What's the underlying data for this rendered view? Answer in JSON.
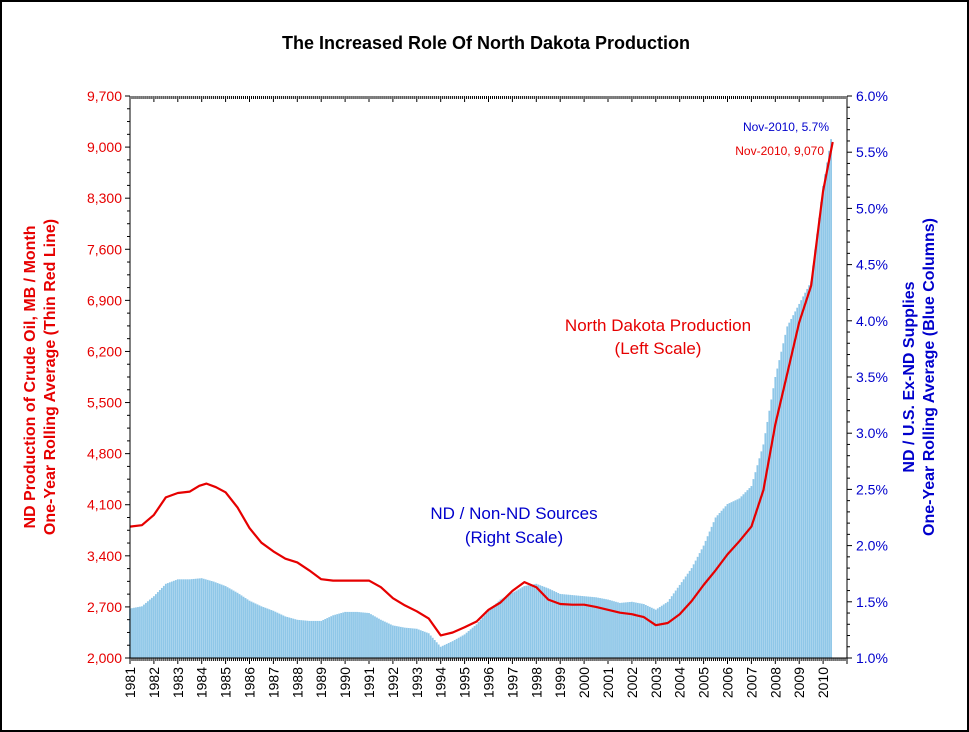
{
  "chart_data": {
    "type": "bar+line",
    "title": "The Increased Role Of North Dakota Production",
    "left_axis": {
      "label_line1": "ND Production of Crude Oil, MB / Month",
      "label_line2": "One-Year Rolling Average (Thin Red Line)",
      "ylim": [
        2000,
        9700
      ],
      "ticks": [
        2000,
        2700,
        3400,
        4100,
        4800,
        5500,
        6200,
        6900,
        7600,
        8300,
        9000,
        9700
      ],
      "tick_labels": [
        "2,000",
        "2,700",
        "3,400",
        "4,100",
        "4,800",
        "5,500",
        "6,200",
        "6,900",
        "7,600",
        "8,300",
        "9,000",
        "9,700"
      ],
      "color": "#e60000"
    },
    "right_axis": {
      "label_line1": "ND / U.S. Ex-ND Supplies",
      "label_line2": "One-Year Rolling Average (Blue Columns)",
      "ylim": [
        1.0,
        6.0
      ],
      "ticks": [
        1.0,
        1.5,
        2.0,
        2.5,
        3.0,
        3.5,
        4.0,
        4.5,
        5.0,
        5.5,
        6.0
      ],
      "tick_labels": [
        "1.0%",
        "1.5%",
        "2.0%",
        "2.5%",
        "3.0%",
        "3.5%",
        "4.0%",
        "4.5%",
        "5.0%",
        "5.5%",
        "6.0%"
      ],
      "color": "#0000cc"
    },
    "x_axis": {
      "range": [
        1981,
        2011
      ],
      "tick_labels": [
        "1981",
        "1982",
        "1983",
        "1984",
        "1985",
        "1986",
        "1987",
        "1988",
        "1989",
        "1990",
        "1991",
        "1992",
        "1993",
        "1994",
        "1995",
        "1996",
        "1997",
        "1998",
        "1999",
        "2000",
        "2001",
        "2002",
        "2003",
        "2004",
        "2005",
        "2006",
        "2007",
        "2008",
        "2009",
        "2010"
      ]
    },
    "series": [
      {
        "name": "North Dakota Production",
        "type": "line",
        "axis": "left",
        "color": "#e60000",
        "points": [
          [
            1981.0,
            3800
          ],
          [
            1981.5,
            3820
          ],
          [
            1982.0,
            3960
          ],
          [
            1982.5,
            4200
          ],
          [
            1983.0,
            4260
          ],
          [
            1983.5,
            4280
          ],
          [
            1983.9,
            4360
          ],
          [
            1984.2,
            4390
          ],
          [
            1984.6,
            4340
          ],
          [
            1985.0,
            4270
          ],
          [
            1985.5,
            4060
          ],
          [
            1986.0,
            3780
          ],
          [
            1986.5,
            3580
          ],
          [
            1987.0,
            3460
          ],
          [
            1987.5,
            3360
          ],
          [
            1988.0,
            3310
          ],
          [
            1988.5,
            3200
          ],
          [
            1989.0,
            3080
          ],
          [
            1989.5,
            3060
          ],
          [
            1990.0,
            3060
          ],
          [
            1990.5,
            3060
          ],
          [
            1991.0,
            3060
          ],
          [
            1991.5,
            2970
          ],
          [
            1992.0,
            2820
          ],
          [
            1992.5,
            2720
          ],
          [
            1993.0,
            2640
          ],
          [
            1993.5,
            2540
          ],
          [
            1994.0,
            2310
          ],
          [
            1994.5,
            2350
          ],
          [
            1995.0,
            2420
          ],
          [
            1995.5,
            2500
          ],
          [
            1996.0,
            2660
          ],
          [
            1996.5,
            2760
          ],
          [
            1997.0,
            2920
          ],
          [
            1997.5,
            3040
          ],
          [
            1998.0,
            2970
          ],
          [
            1998.5,
            2800
          ],
          [
            1999.0,
            2740
          ],
          [
            1999.5,
            2730
          ],
          [
            2000.0,
            2730
          ],
          [
            2000.5,
            2700
          ],
          [
            2001.0,
            2660
          ],
          [
            2001.5,
            2620
          ],
          [
            2002.0,
            2600
          ],
          [
            2002.5,
            2560
          ],
          [
            2003.0,
            2450
          ],
          [
            2003.5,
            2480
          ],
          [
            2004.0,
            2600
          ],
          [
            2004.5,
            2780
          ],
          [
            2005.0,
            3000
          ],
          [
            2005.5,
            3200
          ],
          [
            2006.0,
            3420
          ],
          [
            2006.5,
            3600
          ],
          [
            2007.0,
            3800
          ],
          [
            2007.5,
            4300
          ],
          [
            2008.0,
            5200
          ],
          [
            2008.5,
            5900
          ],
          [
            2009.0,
            6600
          ],
          [
            2009.5,
            7100
          ],
          [
            2010.0,
            8400
          ],
          [
            2010.4,
            9070
          ]
        ]
      },
      {
        "name": "ND / Non-ND Sources",
        "type": "bar",
        "axis": "right",
        "color": "#8fc7e8",
        "points": [
          [
            1981.0,
            1.44
          ],
          [
            1981.5,
            1.46
          ],
          [
            1982.0,
            1.55
          ],
          [
            1982.5,
            1.66
          ],
          [
            1983.0,
            1.7
          ],
          [
            1983.5,
            1.7
          ],
          [
            1984.0,
            1.71
          ],
          [
            1984.5,
            1.68
          ],
          [
            1985.0,
            1.64
          ],
          [
            1985.5,
            1.58
          ],
          [
            1986.0,
            1.51
          ],
          [
            1986.5,
            1.46
          ],
          [
            1987.0,
            1.42
          ],
          [
            1987.5,
            1.37
          ],
          [
            1988.0,
            1.34
          ],
          [
            1988.5,
            1.33
          ],
          [
            1989.0,
            1.33
          ],
          [
            1989.5,
            1.38
          ],
          [
            1990.0,
            1.41
          ],
          [
            1990.5,
            1.41
          ],
          [
            1991.0,
            1.4
          ],
          [
            1991.5,
            1.34
          ],
          [
            1992.0,
            1.29
          ],
          [
            1992.5,
            1.27
          ],
          [
            1993.0,
            1.26
          ],
          [
            1993.5,
            1.22
          ],
          [
            1994.0,
            1.1
          ],
          [
            1994.5,
            1.15
          ],
          [
            1995.0,
            1.21
          ],
          [
            1995.5,
            1.3
          ],
          [
            1996.0,
            1.42
          ],
          [
            1996.5,
            1.52
          ],
          [
            1997.0,
            1.58
          ],
          [
            1997.5,
            1.64
          ],
          [
            1998.0,
            1.66
          ],
          [
            1998.5,
            1.62
          ],
          [
            1999.0,
            1.57
          ],
          [
            1999.5,
            1.56
          ],
          [
            2000.0,
            1.55
          ],
          [
            2000.5,
            1.54
          ],
          [
            2001.0,
            1.52
          ],
          [
            2001.5,
            1.49
          ],
          [
            2002.0,
            1.5
          ],
          [
            2002.5,
            1.48
          ],
          [
            2003.0,
            1.43
          ],
          [
            2003.5,
            1.5
          ],
          [
            2004.0,
            1.65
          ],
          [
            2004.5,
            1.8
          ],
          [
            2005.0,
            2.0
          ],
          [
            2005.5,
            2.25
          ],
          [
            2006.0,
            2.37
          ],
          [
            2006.5,
            2.42
          ],
          [
            2007.0,
            2.53
          ],
          [
            2007.5,
            2.9
          ],
          [
            2008.0,
            3.5
          ],
          [
            2008.5,
            3.95
          ],
          [
            2009.0,
            4.15
          ],
          [
            2009.5,
            4.35
          ],
          [
            2010.0,
            5.2
          ],
          [
            2010.4,
            5.7
          ]
        ]
      }
    ],
    "annotations": {
      "line_label_1": "North Dakota Production",
      "line_label_2": "(Left Scale)",
      "bar_label_1": "ND / Non-ND Sources",
      "bar_label_2": "(Right Scale)",
      "last_bar_value": "Nov-2010, 5.7%",
      "last_line_value": "Nov-2010, 9,070"
    },
    "colors": {
      "frame": "#000000",
      "axis": "#000000",
      "text": "#000000"
    }
  }
}
